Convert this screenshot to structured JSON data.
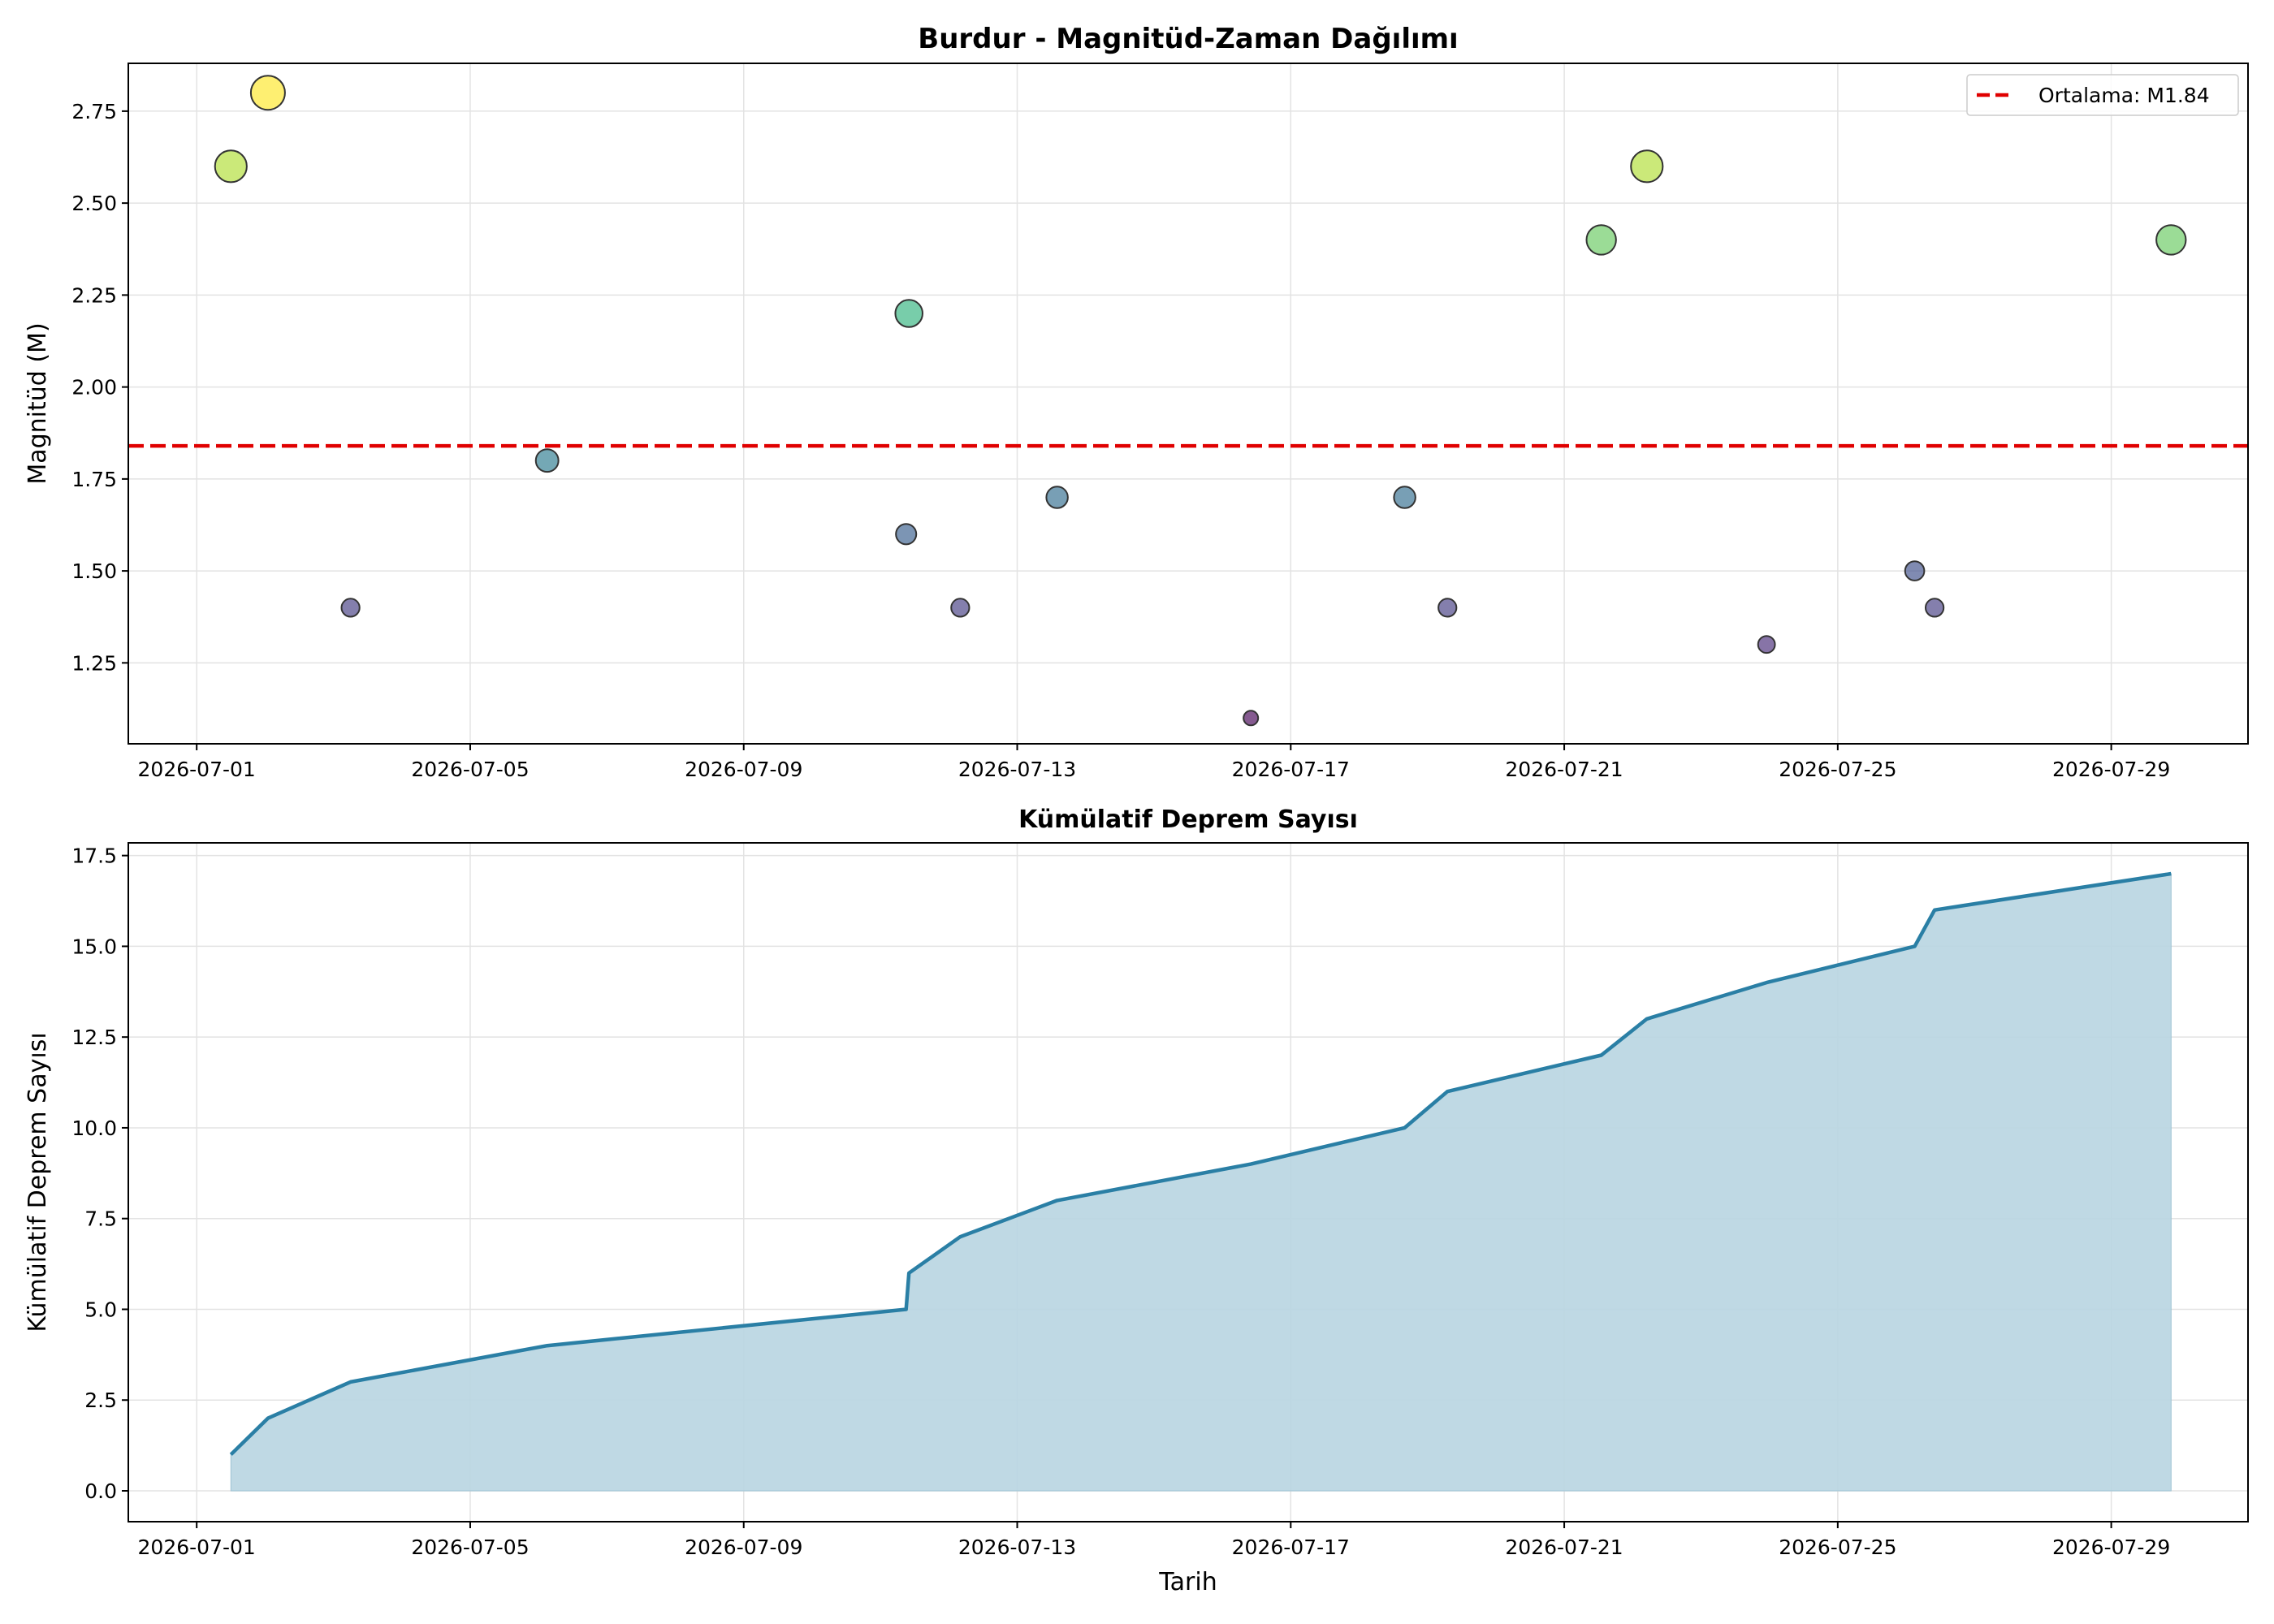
{
  "chart_data": [
    {
      "type": "scatter",
      "title": "Burdur - Magnitüd-Zaman Dağılımı",
      "xlabel": "",
      "ylabel": "Magnitüd (M)",
      "xlim": [
        "2026-06-30T00:00",
        "2026-07-31T00:00"
      ],
      "ylim": [
        1.03,
        2.88
      ],
      "x_ticks": [
        "2026-07-01",
        "2026-07-05",
        "2026-07-09",
        "2026-07-13",
        "2026-07-17",
        "2026-07-21",
        "2026-07-25",
        "2026-07-29"
      ],
      "y_ticks": [
        "1.25",
        "1.50",
        "1.75",
        "2.00",
        "2.25",
        "2.50",
        "2.75"
      ],
      "grid": true,
      "legend": {
        "placement": "top-right",
        "entries": [
          "Ortalama: M1.84"
        ]
      },
      "mean_line": {
        "value": 1.84,
        "label": "Ortalama: M1.84",
        "color": "#e00000"
      },
      "colormap": "viridis",
      "marker_size_encodes": "magnitude",
      "points": [
        {
          "t": "2026-07-01T12:00",
          "m": 2.6
        },
        {
          "t": "2026-07-02T01:00",
          "m": 2.8
        },
        {
          "t": "2026-07-03T06:00",
          "m": 1.4
        },
        {
          "t": "2026-07-06T03:00",
          "m": 1.8
        },
        {
          "t": "2026-07-11T09:00",
          "m": 1.6
        },
        {
          "t": "2026-07-11T10:00",
          "m": 2.2
        },
        {
          "t": "2026-07-12T04:00",
          "m": 1.4
        },
        {
          "t": "2026-07-13T14:00",
          "m": 1.7
        },
        {
          "t": "2026-07-16T10:00",
          "m": 1.1
        },
        {
          "t": "2026-07-18T16:00",
          "m": 1.7
        },
        {
          "t": "2026-07-19T07:00",
          "m": 1.4
        },
        {
          "t": "2026-07-21T13:00",
          "m": 2.4
        },
        {
          "t": "2026-07-22T05:00",
          "m": 2.6
        },
        {
          "t": "2026-07-23T23:00",
          "m": 1.3
        },
        {
          "t": "2026-07-26T03:00",
          "m": 1.5
        },
        {
          "t": "2026-07-26T10:00",
          "m": 1.4
        },
        {
          "t": "2026-07-29T21:00",
          "m": 2.4
        }
      ]
    },
    {
      "type": "area",
      "title": "Kümülatif Deprem Sayısı",
      "xlabel": "Tarih",
      "ylabel": "Kümülatif Deprem Sayısı",
      "xlim": [
        "2026-06-30T00:00",
        "2026-07-31T00:00"
      ],
      "ylim": [
        -0.85,
        17.85
      ],
      "x_ticks": [
        "2026-07-01",
        "2026-07-05",
        "2026-07-09",
        "2026-07-13",
        "2026-07-17",
        "2026-07-21",
        "2026-07-25",
        "2026-07-29"
      ],
      "y_ticks": [
        "0.0",
        "2.5",
        "5.0",
        "7.5",
        "10.0",
        "12.5",
        "15.0",
        "17.5"
      ],
      "grid": true,
      "line_color": "#2a7fa5",
      "fill_color": "#b8d5e1",
      "x": [
        "2026-07-01T12:00",
        "2026-07-02T01:00",
        "2026-07-03T06:00",
        "2026-07-06T03:00",
        "2026-07-11T09:00",
        "2026-07-11T10:00",
        "2026-07-12T04:00",
        "2026-07-13T14:00",
        "2026-07-16T10:00",
        "2026-07-18T16:00",
        "2026-07-19T07:00",
        "2026-07-21T13:00",
        "2026-07-22T05:00",
        "2026-07-23T23:00",
        "2026-07-26T03:00",
        "2026-07-26T10:00",
        "2026-07-29T21:00"
      ],
      "y": [
        1,
        2,
        3,
        4,
        5,
        6,
        7,
        8,
        9,
        10,
        11,
        12,
        13,
        14,
        15,
        16,
        17
      ]
    }
  ]
}
